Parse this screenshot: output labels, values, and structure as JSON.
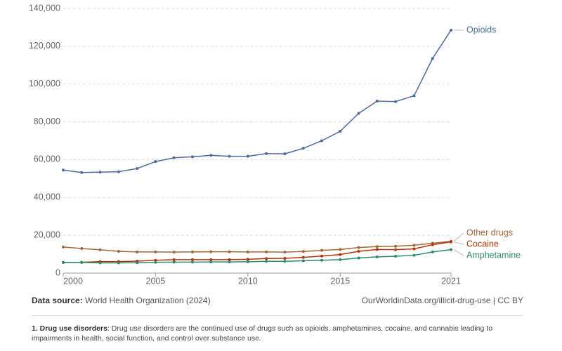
{
  "chart_data": {
    "type": "line",
    "x": [
      2000,
      2001,
      2002,
      2003,
      2004,
      2005,
      2006,
      2007,
      2008,
      2009,
      2010,
      2011,
      2012,
      2013,
      2014,
      2015,
      2016,
      2017,
      2018,
      2019,
      2020,
      2021
    ],
    "series": [
      {
        "name": "Opioids",
        "color": "#4c6a9c",
        "values": [
          54500,
          53200,
          53400,
          53600,
          55300,
          59000,
          61000,
          61500,
          62300,
          61800,
          61800,
          63200,
          63100,
          66000,
          70000,
          75000,
          84500,
          91000,
          90700,
          93800,
          113500,
          128500
        ]
      },
      {
        "name": "Other drugs",
        "color": "#a2663a",
        "values": [
          13800,
          13000,
          12300,
          11500,
          11200,
          11200,
          11100,
          11200,
          11300,
          11300,
          11200,
          11200,
          11100,
          11400,
          12000,
          12500,
          13500,
          14000,
          14200,
          14700,
          15800,
          16800
        ]
      },
      {
        "name": "Cocaine",
        "color": "#b13507",
        "values": [
          5600,
          5700,
          6100,
          6100,
          6300,
          6800,
          7100,
          7100,
          7100,
          7100,
          7300,
          7700,
          7800,
          8300,
          9000,
          9800,
          11500,
          12500,
          12400,
          12800,
          15000,
          16500
        ]
      },
      {
        "name": "Amphetamine",
        "color": "#2e8a6e",
        "values": [
          5600,
          5600,
          5400,
          5400,
          5500,
          5700,
          5800,
          5800,
          5900,
          5900,
          6000,
          6200,
          6200,
          6500,
          6800,
          7100,
          8000,
          8600,
          8900,
          9400,
          11200,
          12400
        ]
      }
    ],
    "xlim": [
      2000,
      2021
    ],
    "xticks": [
      2000,
      2005,
      2010,
      2015,
      2021
    ],
    "ylim": [
      0,
      140000
    ],
    "yticks": [
      0,
      {
        "value": 20000,
        "label": "20,000"
      },
      {
        "value": 40000,
        "label": "40,000"
      },
      {
        "value": 60000,
        "label": "60,000"
      },
      {
        "value": 80000,
        "label": "80,000"
      },
      {
        "value": 100000,
        "label": "100,000"
      },
      {
        "value": 120000,
        "label": "120,000"
      },
      {
        "value": 140000,
        "label": "140,000"
      }
    ],
    "grid": true,
    "source_label": "Data source:",
    "source": "World Health Organization (2024)",
    "credit": "OurWorldinData.org/illicit-drug-use | CC BY",
    "footnote_label": "1. Drug use disorders",
    "footnote": ": Drug use disorders are the continued use of drugs such as opioids, amphetamines, cocaine, and cannabis leading to impairments in health, social function, and control over substance use."
  }
}
